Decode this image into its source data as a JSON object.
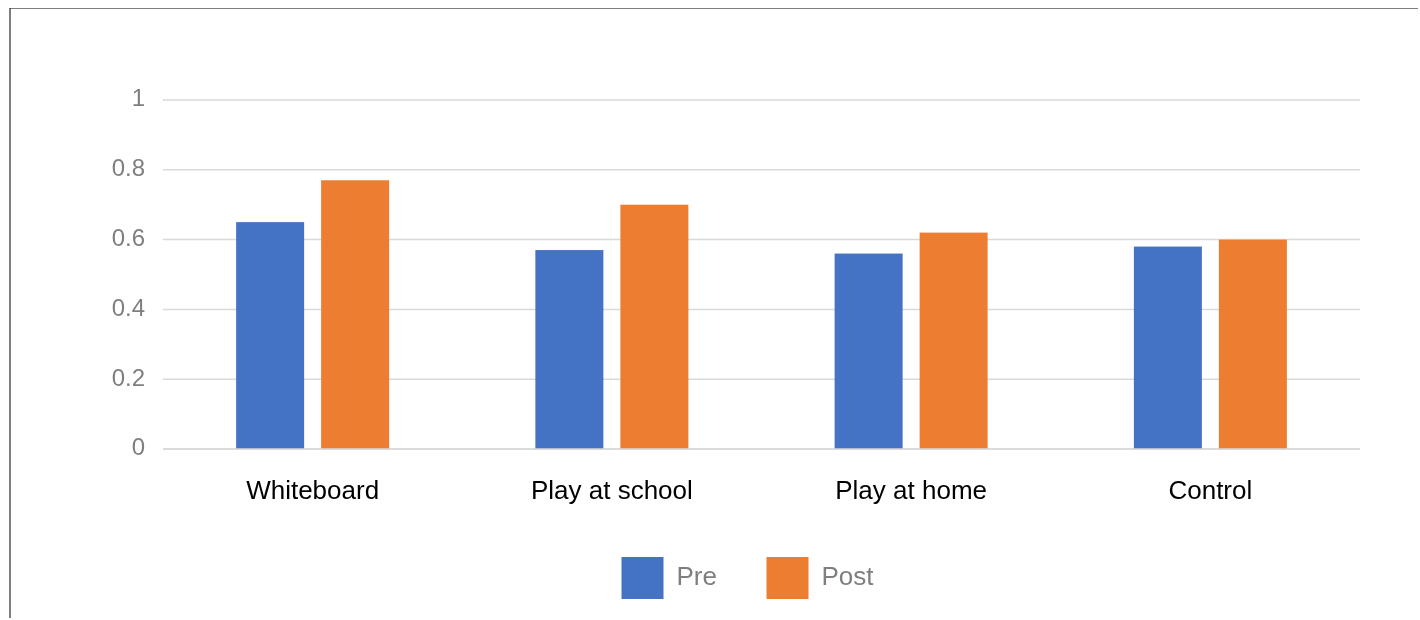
{
  "chart_data": {
    "type": "bar",
    "categories": [
      "Whiteboard",
      "Play at school",
      "Play at home",
      "Control"
    ],
    "series": [
      {
        "name": "Pre",
        "color": "#4472c4",
        "values": [
          0.65,
          0.57,
          0.56,
          0.58
        ]
      },
      {
        "name": "Post",
        "color": "#ed7d31",
        "values": [
          0.77,
          0.7,
          0.62,
          0.6
        ]
      }
    ],
    "ylim": [
      0,
      1
    ],
    "yticks": [
      0,
      0.2,
      0.4,
      0.6,
      0.8,
      1
    ],
    "grid": "y",
    "legend": "bottom"
  }
}
